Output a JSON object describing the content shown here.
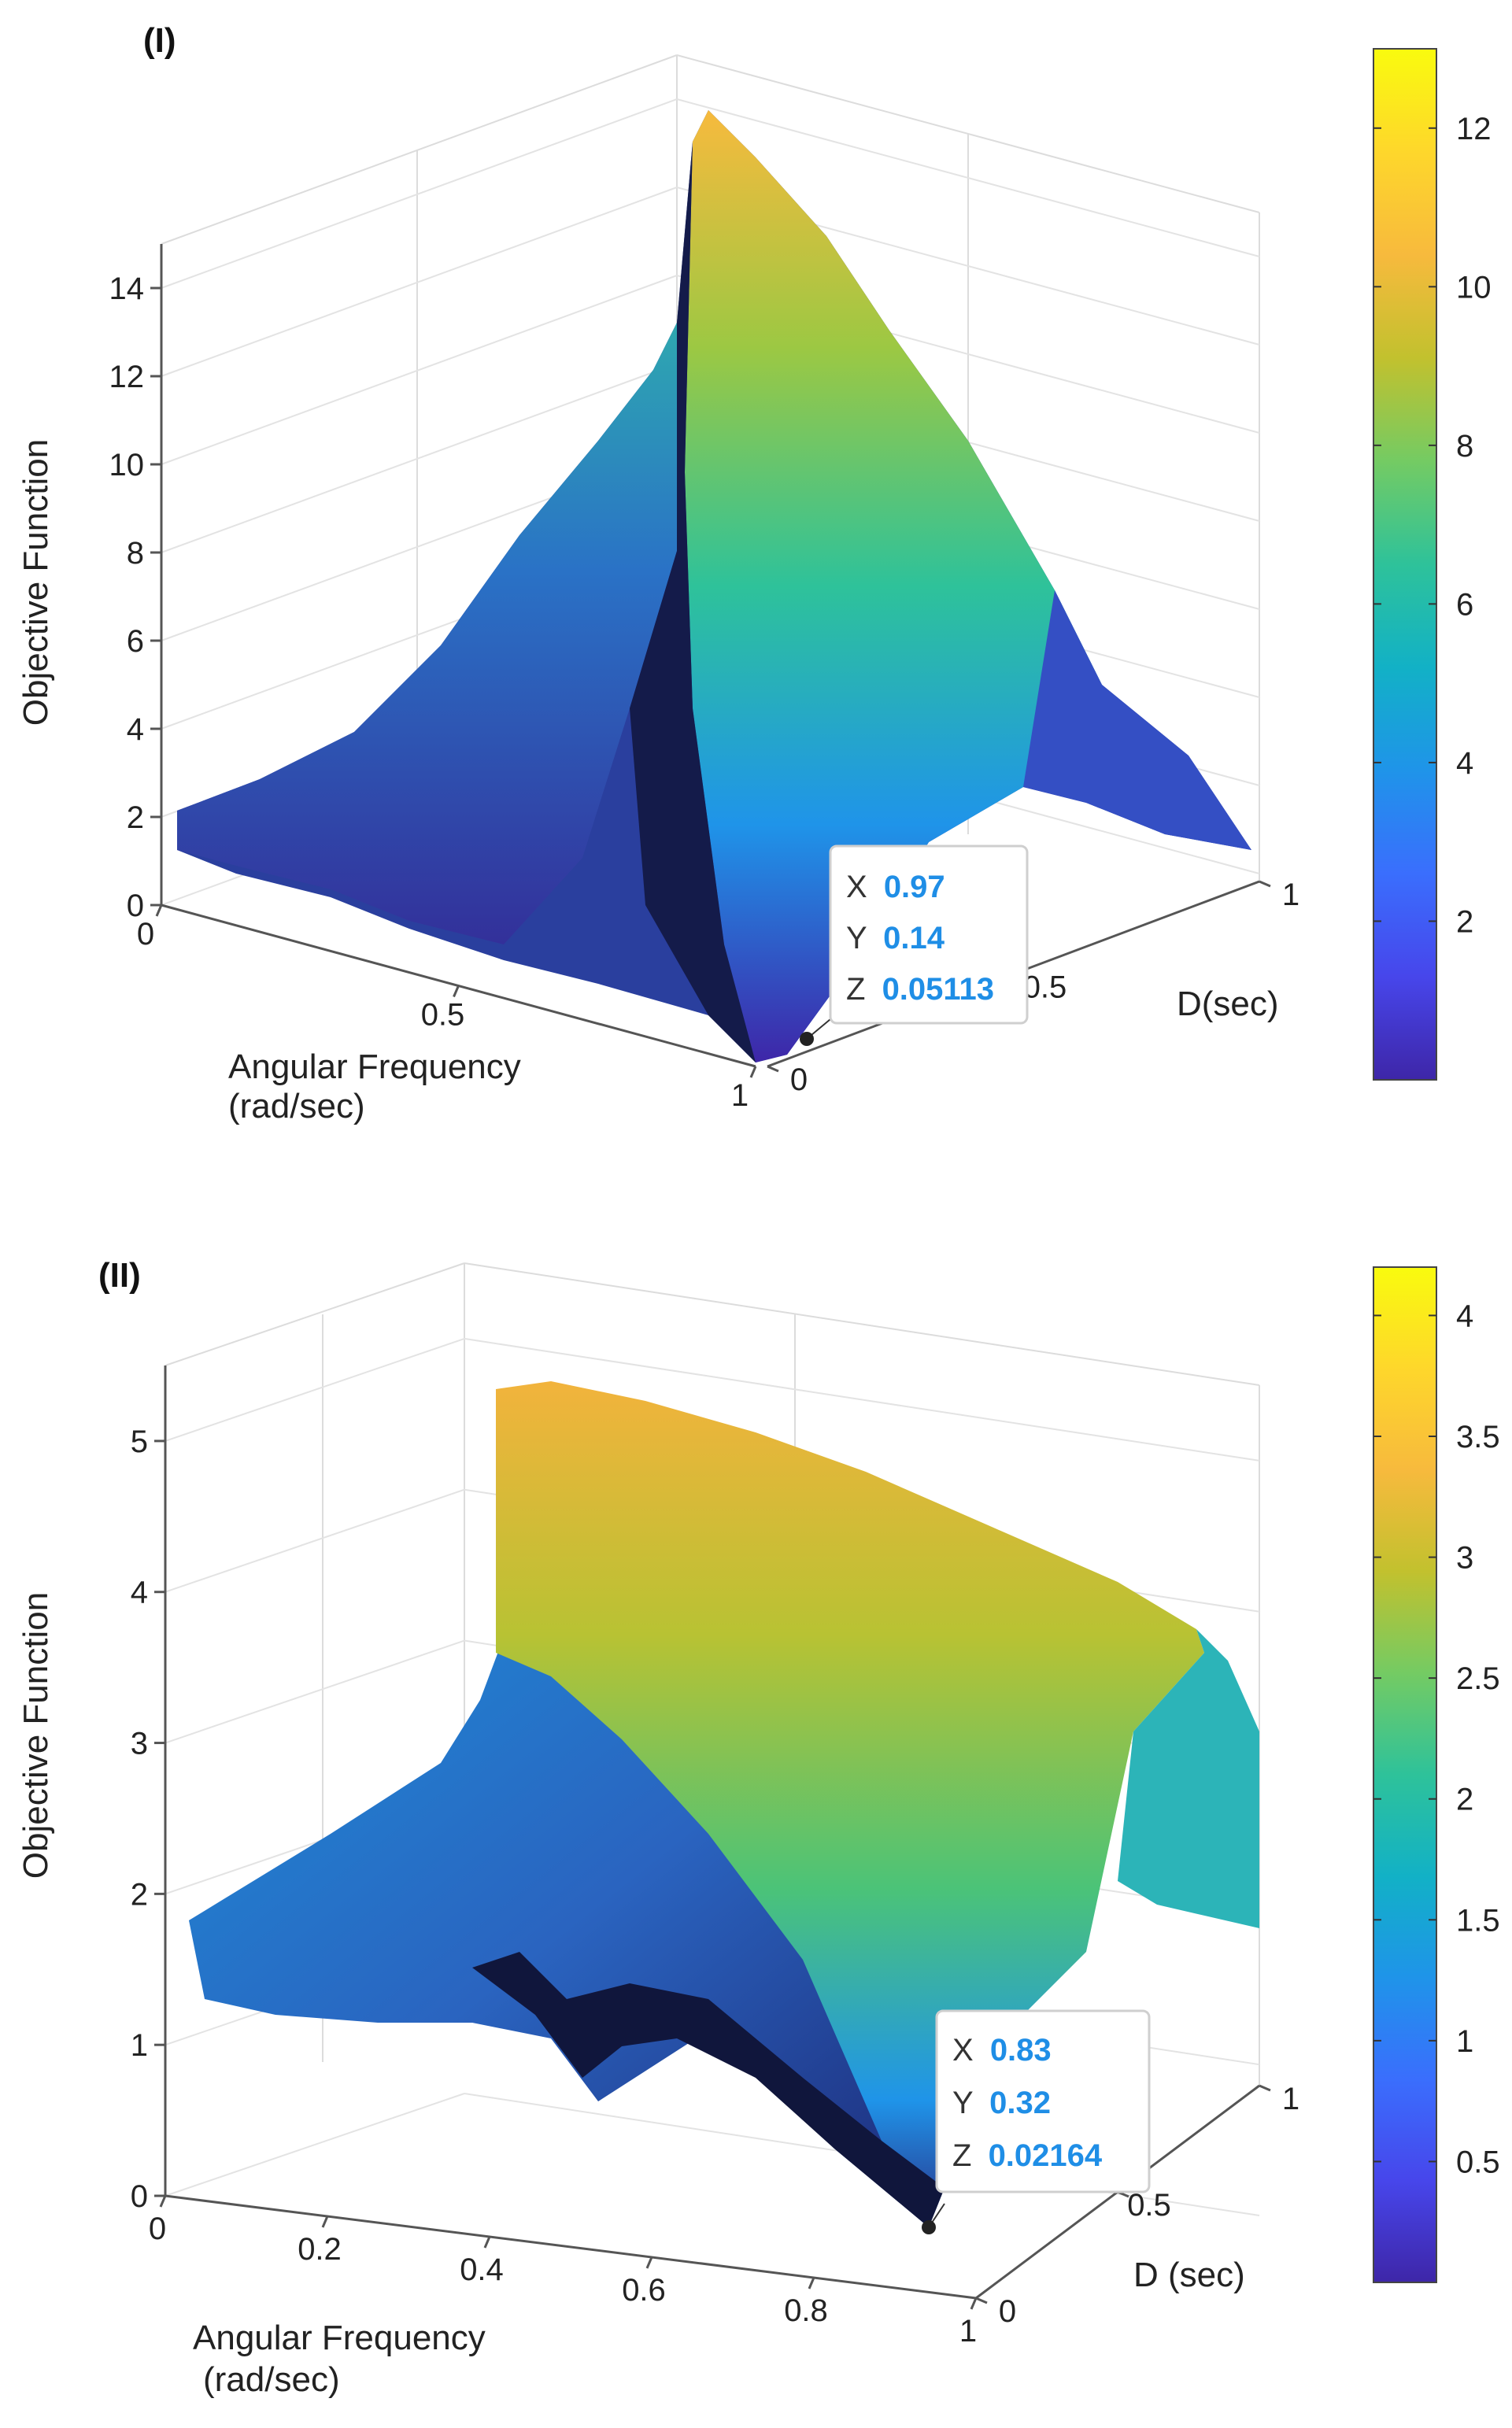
{
  "chart_data": [
    {
      "type": "surface3d",
      "panel_label": "(I)",
      "title": "",
      "xlabel": [
        "Angular Frequency",
        "(rad/sec)"
      ],
      "ylabel": "D(sec)",
      "zlabel": "Objective Function",
      "x_ticks": [
        "0",
        "0.5",
        "1"
      ],
      "y_ticks": [
        "0",
        "0.5",
        "1"
      ],
      "z_ticks": [
        "0",
        "2",
        "4",
        "6",
        "8",
        "10",
        "12",
        "14"
      ],
      "xlim": [
        0,
        1
      ],
      "ylim": [
        0,
        1
      ],
      "zlim": [
        0,
        15
      ],
      "grid": true,
      "colormap": "parula",
      "colorbar": {
        "min": 0,
        "max": 13,
        "ticks": [
          "2",
          "4",
          "6",
          "8",
          "10",
          "12"
        ]
      },
      "datatip": {
        "x_label": "X",
        "x_value": "0.97",
        "y_label": "Y",
        "y_value": "0.14",
        "z_label": "Z",
        "z_value": "0.05113"
      }
    },
    {
      "type": "surface3d",
      "panel_label": "(II)",
      "title": "",
      "xlabel": [
        "Angular Frequency",
        "(rad/sec)"
      ],
      "ylabel": "D (sec)",
      "zlabel": "Objective Function",
      "x_ticks": [
        "0",
        "0.2",
        "0.4",
        "0.6",
        "0.8",
        "1"
      ],
      "y_ticks": [
        "0",
        "0.5",
        "1"
      ],
      "z_ticks": [
        "0",
        "1",
        "2",
        "3",
        "4",
        "5"
      ],
      "xlim": [
        0,
        1
      ],
      "ylim": [
        0,
        1
      ],
      "zlim": [
        0,
        5.5
      ],
      "grid": true,
      "colormap": "parula",
      "colorbar": {
        "min": 0,
        "max": 4.2,
        "ticks": [
          "0.5",
          "1",
          "1.5",
          "2",
          "2.5",
          "3",
          "3.5",
          "4"
        ]
      },
      "datatip": {
        "x_label": "X",
        "x_value": "0.83",
        "y_label": "Y",
        "y_value": "0.32",
        "z_label": "Z",
        "z_value": "0.02164"
      }
    }
  ],
  "colors": {
    "tip_value": "#1f8ee6",
    "axis": "#555555",
    "grid": "#e3e3e3",
    "text": "#222222",
    "parula": [
      "#3e26a8",
      "#4746eb",
      "#3a6efd",
      "#1f94e9",
      "#12b1c6",
      "#2ec29a",
      "#74cb63",
      "#c2c12e",
      "#f7ba3d",
      "#fed72b",
      "#f9fb0e"
    ]
  }
}
